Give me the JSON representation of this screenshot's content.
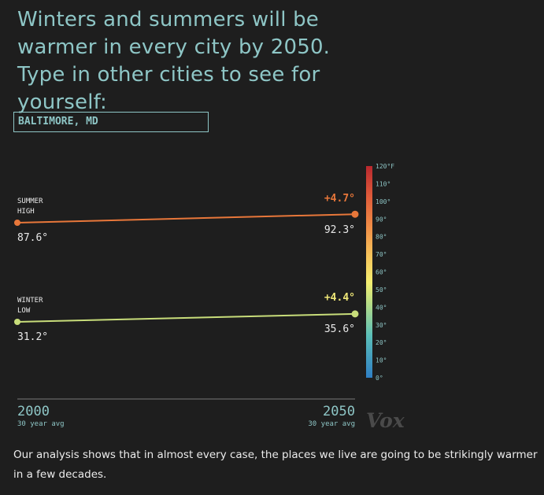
{
  "headline": "Winters and summers will be warmer in every city by 2050. Type in other cities to see for yourself:",
  "city_input": {
    "value": "BALTIMORE, MD"
  },
  "chart_data": {
    "type": "line",
    "x": [
      "2000",
      "2050"
    ],
    "x_sublabels": [
      "30 year avg",
      "30 year avg"
    ],
    "series": [
      {
        "name": "SUMMER HIGH",
        "name_lines": [
          "SUMMER",
          "HIGH"
        ],
        "values": [
          87.6,
          92.3
        ],
        "labels": [
          "87.6°",
          "92.3°"
        ],
        "change": "+4.7°",
        "color": "#e8773a",
        "change_color": "#e8773a"
      },
      {
        "name": "WINTER LOW",
        "name_lines": [
          "WINTER",
          "LOW"
        ],
        "values": [
          31.2,
          35.6
        ],
        "labels": [
          "31.2°",
          "35.6°"
        ],
        "change": "+4.4°",
        "color": "#c8dd7a",
        "change_color": "#f0e878"
      }
    ],
    "color_scale": {
      "range": [
        0,
        120
      ],
      "ticks": [
        "120°F",
        "110°",
        "100°",
        "90°",
        "80°",
        "70°",
        "60°",
        "50°",
        "40°",
        "30°",
        "20°",
        "10°",
        "0°"
      ]
    }
  },
  "watermark": "Vox",
  "footer": "Our analysis shows that in almost every case, the places we live are going to be strikingly warmer in a few decades."
}
